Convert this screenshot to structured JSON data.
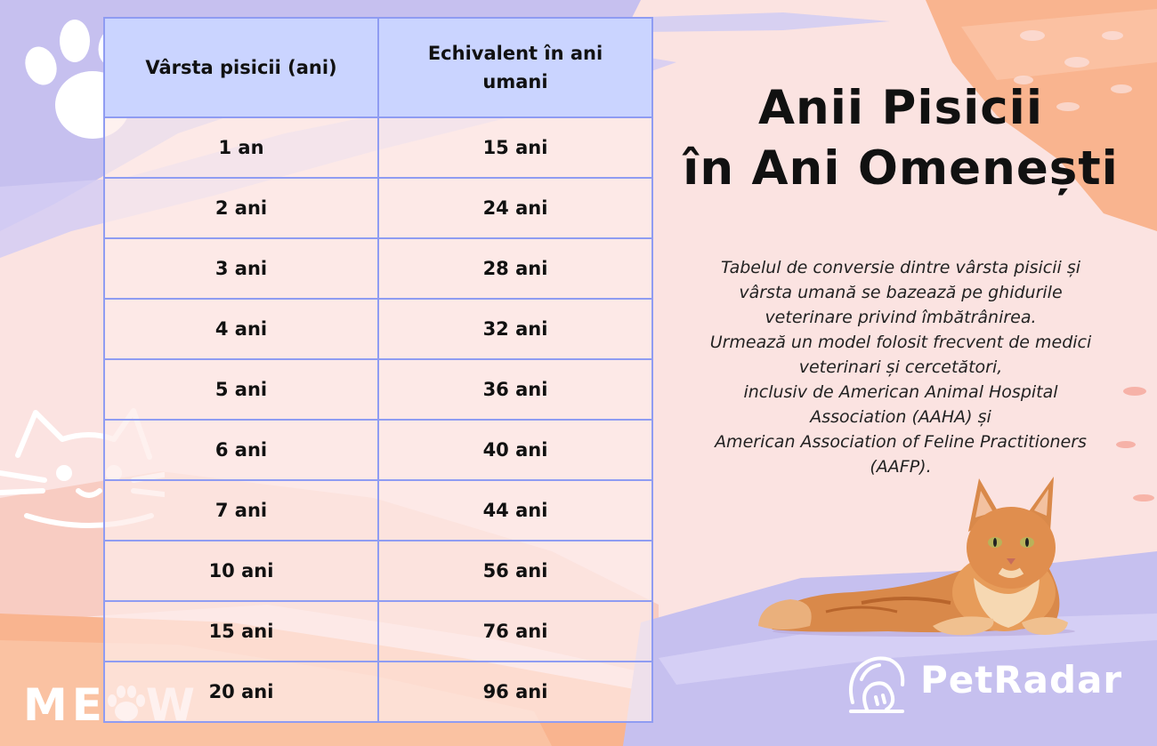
{
  "table": {
    "headers": [
      "Vârsta pisicii (ani)",
      "Echivalent în ani umani"
    ],
    "rows": [
      [
        "1 an",
        "15 ani"
      ],
      [
        "2 ani",
        "24 ani"
      ],
      [
        "3 ani",
        "28 ani"
      ],
      [
        "4 ani",
        "32 ani"
      ],
      [
        "5 ani",
        "36 ani"
      ],
      [
        "6 ani",
        "40 ani"
      ],
      [
        "7 ani",
        "44 ani"
      ],
      [
        "10 ani",
        "56 ani"
      ],
      [
        "15 ani",
        "76 ani"
      ],
      [
        "20 ani",
        "96 ani"
      ]
    ]
  },
  "title": {
    "line1": "Anii Pisicii",
    "line2": "în Ani Omenești"
  },
  "description": {
    "lines": [
      "Tabelul de conversie dintre vârsta pisicii și",
      "vârsta umană se bazează pe ghidurile",
      "veterinare privind îmbătrânirea.",
      "Urmează un model folosit frecvent de medici",
      "veterinari și cercetători,",
      "inclusiv de American Animal Hospital",
      "Association (AAHA) și",
      "American Association of Feline Practitioners",
      "(AAFP)."
    ]
  },
  "brand": {
    "name": "PetRadar",
    "icon": "petradar-logo-icon"
  },
  "decor": {
    "meow_text": "ME",
    "meow_text_end": "W",
    "icons": [
      "paw-icon",
      "cat-face-icon",
      "cat-illustration"
    ]
  },
  "colors": {
    "background": "#fbe3e1",
    "lavender": "#c6c0ef",
    "peach": "#f9b48f",
    "table_header": "#cad4ff",
    "table_border": "#8f9cf2",
    "text": "#111111"
  }
}
